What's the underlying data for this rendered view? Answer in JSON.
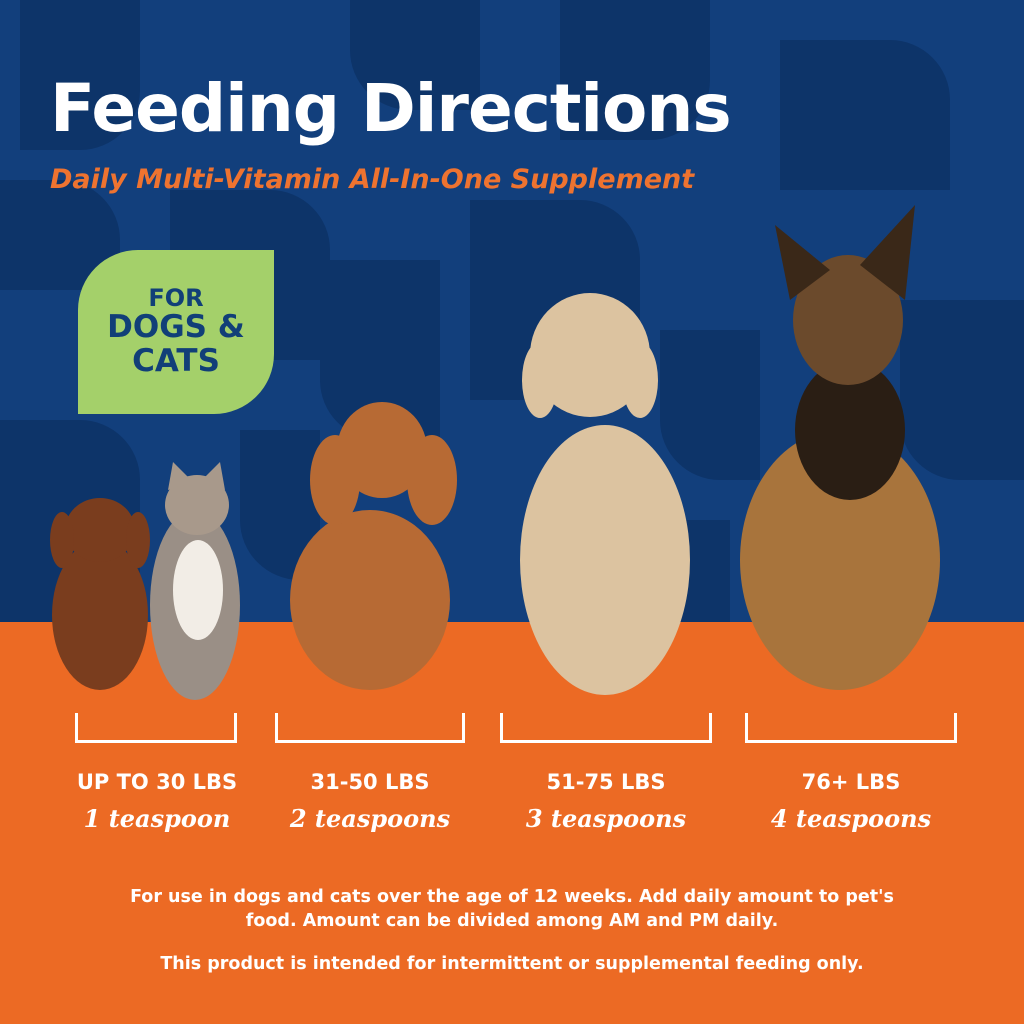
{
  "header": {
    "title": "Feeding Directions",
    "subtitle": "Daily Multi-Vitamin All-In-One Supplement"
  },
  "badge": {
    "line1": "FOR",
    "line2": "DOGS &",
    "line3": "CATS"
  },
  "dosage": [
    {
      "weight": "UP TO 30 LBS",
      "amount": "1 teaspoon"
    },
    {
      "weight": "31-50 LBS",
      "amount": "2 teaspoons"
    },
    {
      "weight": "51-75 LBS",
      "amount": "3 teaspoons"
    },
    {
      "weight": "76+ LBS",
      "amount": "4 teaspoons"
    }
  ],
  "notes": {
    "usage": "For use in dogs and cats over the age of 12 weeks. Add daily amount to pet's food. Amount can be divided among AM and PM daily.",
    "disclaimer": "This product is intended for intermittent or supplemental feeding only."
  },
  "colors": {
    "navy": "#123f7c",
    "orange": "#ec6a24",
    "green": "#a4d06a"
  }
}
